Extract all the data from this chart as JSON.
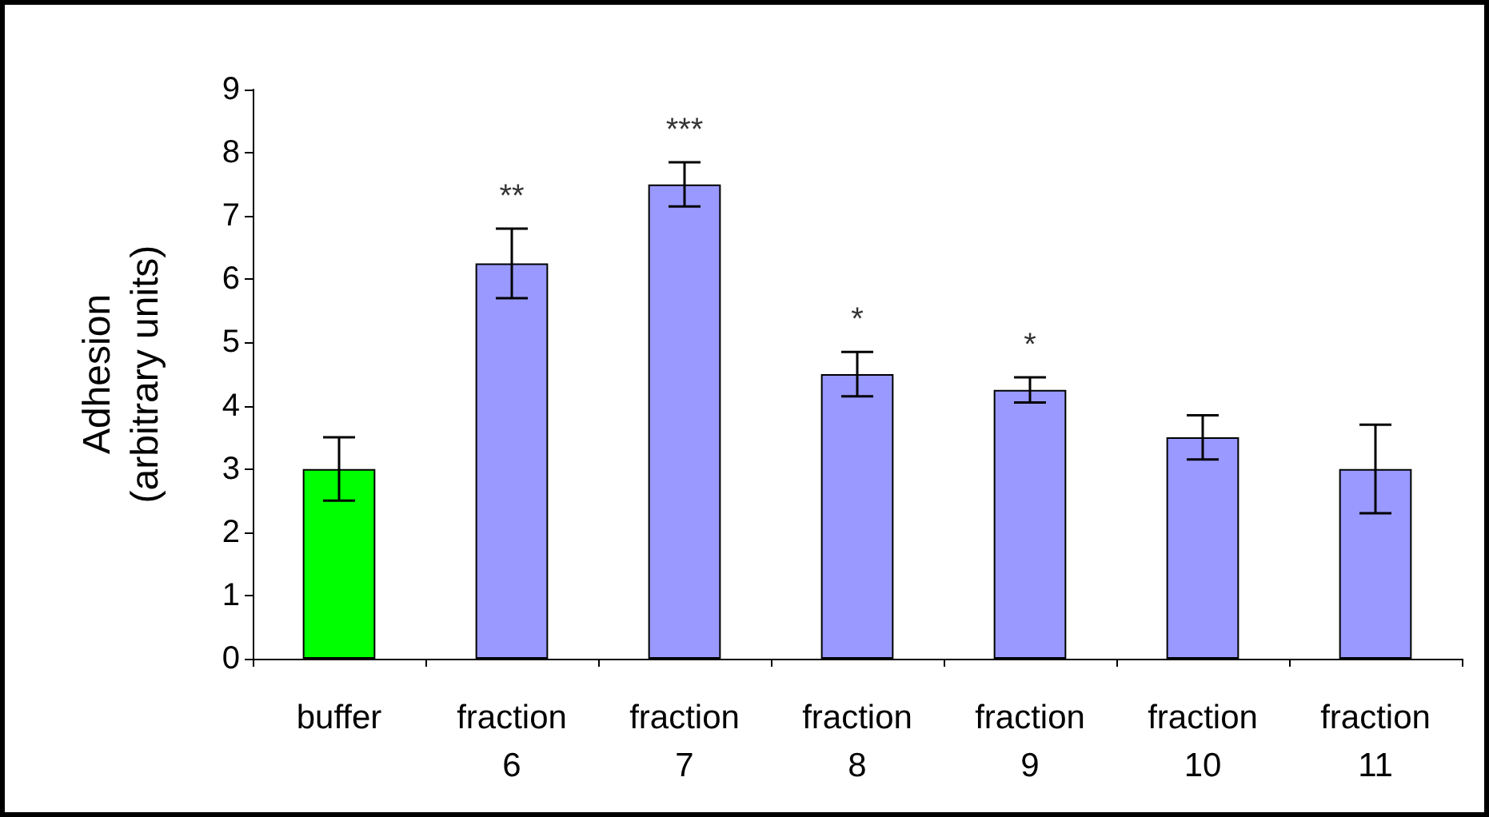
{
  "chart_data": {
    "type": "bar",
    "ylabel": "Adhesion\n(arbitrary units)",
    "categories": [
      "buffer",
      "fraction\n6",
      "fraction\n7",
      "fraction\n8",
      "fraction\n9",
      "fraction\n10",
      "fraction\n11"
    ],
    "values": [
      3.0,
      6.25,
      7.5,
      4.5,
      4.25,
      3.5,
      3.0
    ],
    "colors": [
      "#00ff00",
      "#9999ff",
      "#9999ff",
      "#9999ff",
      "#9999ff",
      "#9999ff",
      "#9999ff"
    ],
    "errors": [
      0.5,
      0.55,
      0.35,
      0.35,
      0.2,
      0.35,
      0.7
    ],
    "ylim": [
      0,
      9
    ],
    "yticks": [
      0,
      1,
      2,
      3,
      4,
      5,
      6,
      7,
      8,
      9
    ],
    "grid": false,
    "annotations": [
      "**",
      "***",
      "*",
      "*"
    ]
  }
}
